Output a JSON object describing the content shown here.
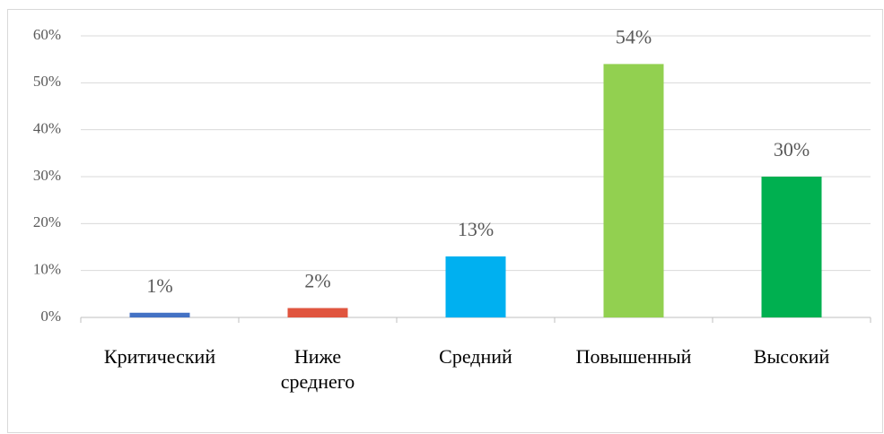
{
  "chart_data": {
    "type": "bar",
    "categories": [
      "Критический",
      "Ниже\nсреднего",
      "Средний",
      "Повышенный",
      "Высокий"
    ],
    "values": [
      1,
      2,
      13,
      54,
      30
    ],
    "value_labels": [
      "1%",
      "2%",
      "13%",
      "54%",
      "30%"
    ],
    "colors": [
      "#4472c4",
      "#e0553f",
      "#00b0f0",
      "#92d050",
      "#00b050"
    ],
    "ylim": [
      0,
      60
    ],
    "yticks": [
      {
        "value": 0,
        "label": "0%"
      },
      {
        "value": 10,
        "label": "10%"
      },
      {
        "value": 20,
        "label": "20%"
      },
      {
        "value": 30,
        "label": "30%"
      },
      {
        "value": 40,
        "label": "40%"
      },
      {
        "value": 50,
        "label": "50%"
      },
      {
        "value": 60,
        "label": "60%"
      }
    ],
    "grid": true
  }
}
